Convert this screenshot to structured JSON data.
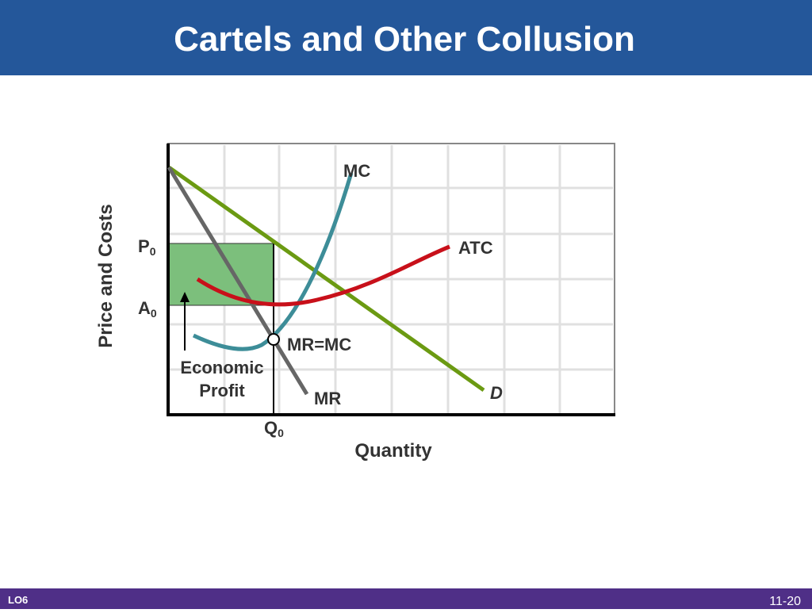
{
  "header": {
    "title": "Cartels and Other Collusion"
  },
  "diagram": {
    "y_axis_label": "Price and Costs",
    "x_axis_label": "Quantity",
    "price_label": {
      "main": "P",
      "sub": "0"
    },
    "cost_label": {
      "main": "A",
      "sub": "0"
    },
    "quantity_label": {
      "main": "Q",
      "sub": "0"
    },
    "curves": {
      "mc": "MC",
      "atc": "ATC",
      "mr": "MR",
      "demand": "D"
    },
    "equilibrium_label": "MR=MC",
    "profit_label": [
      "Economic",
      "Profit"
    ]
  },
  "footer": {
    "objective": "LO6",
    "page": "11-20"
  }
}
